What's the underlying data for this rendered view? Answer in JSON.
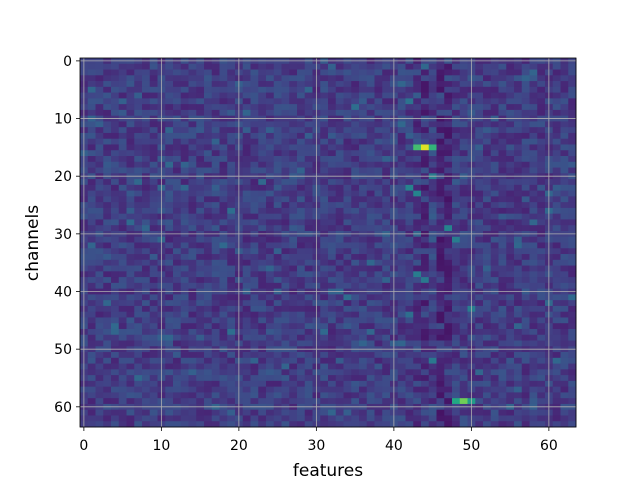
{
  "chart_data": {
    "type": "heatmap",
    "title": "",
    "xlabel": "features",
    "ylabel": "channels",
    "xlim": [
      -0.5,
      63.5
    ],
    "ylim": [
      63.5,
      -0.5
    ],
    "rows": 64,
    "cols": 64,
    "xticks": [
      0,
      10,
      20,
      30,
      40,
      50,
      60
    ],
    "yticks": [
      0,
      10,
      20,
      30,
      40,
      50,
      60
    ],
    "grid": true,
    "colormap": "viridis",
    "value_range": [
      0,
      1
    ],
    "background_level": 0.18,
    "background_spread": 0.08,
    "dark_columns": [
      {
        "col": 43,
        "level": 0.08
      },
      {
        "col": 44,
        "level": 0.06
      },
      {
        "col": 46,
        "level": 0.05
      },
      {
        "col": 47,
        "level": 0.05
      }
    ],
    "bright_cells": [
      {
        "row": 15,
        "col": 43,
        "value": 0.7
      },
      {
        "row": 15,
        "col": 44,
        "value": 0.95
      },
      {
        "row": 15,
        "col": 45,
        "value": 0.65
      },
      {
        "row": 59,
        "col": 48,
        "value": 0.6
      },
      {
        "row": 59,
        "col": 49,
        "value": 0.78
      },
      {
        "row": 59,
        "col": 50,
        "value": 0.55
      },
      {
        "row": 22,
        "col": 42,
        "value": 0.45
      },
      {
        "row": 23,
        "col": 43,
        "value": 0.45
      },
      {
        "row": 29,
        "col": 47,
        "value": 0.45
      },
      {
        "row": 31,
        "col": 48,
        "value": 0.42
      },
      {
        "row": 37,
        "col": 43,
        "value": 0.42
      },
      {
        "row": 38,
        "col": 44,
        "value": 0.4
      },
      {
        "row": 43,
        "col": 50,
        "value": 0.42
      },
      {
        "row": 52,
        "col": 45,
        "value": 0.4
      },
      {
        "row": 20,
        "col": 45,
        "value": 0.42
      },
      {
        "row": 7,
        "col": 42,
        "value": 0.38
      },
      {
        "row": 41,
        "col": 34,
        "value": 0.36
      },
      {
        "row": 28,
        "col": 6,
        "value": 0.34
      },
      {
        "row": 47,
        "col": 19,
        "value": 0.36
      },
      {
        "row": 26,
        "col": 19,
        "value": 0.36
      },
      {
        "row": 8,
        "col": 35,
        "value": 0.36
      },
      {
        "row": 32,
        "col": 18,
        "value": 0.34
      },
      {
        "row": 47,
        "col": 31,
        "value": 0.34
      },
      {
        "row": 44,
        "col": 42,
        "value": 0.36
      },
      {
        "row": 2,
        "col": 58,
        "value": 0.32
      }
    ]
  }
}
